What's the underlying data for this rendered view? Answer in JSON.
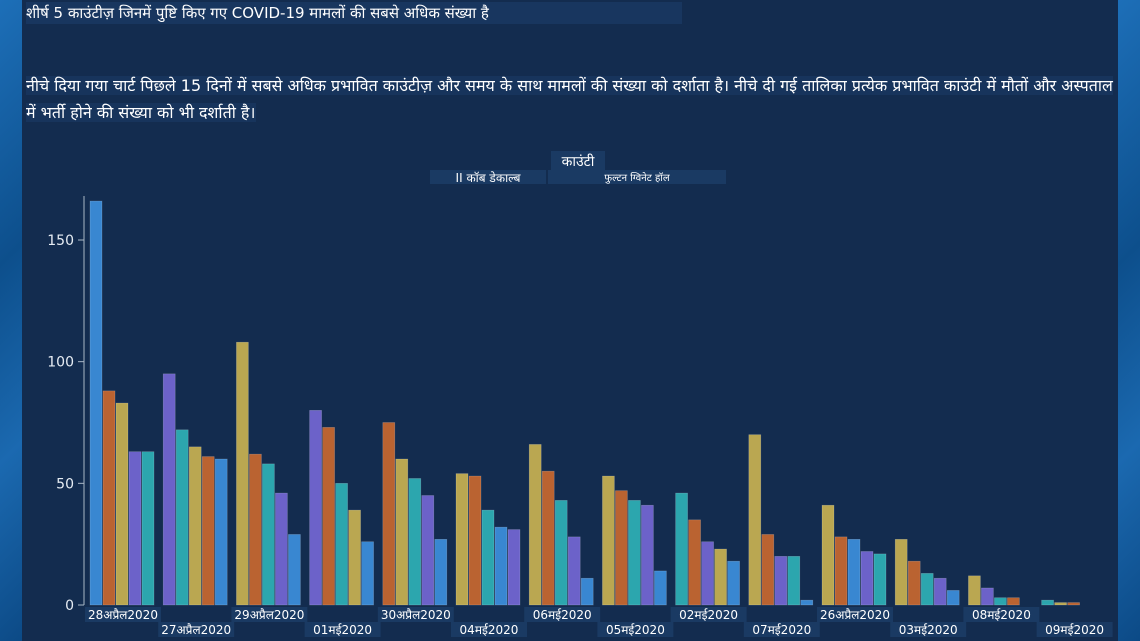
{
  "header": {
    "title": "शीर्ष 5 काउंटीज़ जिनमें पुष्टि किए गए COVID-19 मामलों की सबसे अधिक संख्या है",
    "description": "नीचे दिया गया चार्ट पिछले 15 दिनों में सबसे अधिक प्रभावित काउंटीज़ और समय के साथ मामलों की संख्या को दर्शाता है। नीचे दी गई तालिका प्रत्येक प्रभावित काउंटी में मौतों और अस्पताल में भर्ती होने की संख्या को भी दर्शाती है।"
  },
  "chart_data": {
    "type": "bar",
    "legend": {
      "title": "काउंटी",
      "label_left": "II कॉब डेकाल्ब",
      "label_right": "फुल्टन ग्विनेट हॉल",
      "position": "top-center"
    },
    "ylim": [
      0,
      170
    ],
    "yticks": [
      0,
      50,
      100,
      150
    ],
    "grid": false,
    "colors": [
      "#3d8fdc",
      "#c9682f",
      "#c9b251",
      "#7467d4",
      "#2fb1b6"
    ],
    "categories": [
      "28अप्रैल2020",
      "27अप्रैल2020",
      "29अप्रैल2020",
      "01मई2020",
      "30अप्रैल2020",
      "04मई2020",
      "06मई2020",
      "05मई2020",
      "02मई2020",
      "07मई2020",
      "26अप्रैल2020",
      "03मई2020",
      "08मई2020",
      "09मई2020"
    ],
    "groups": [
      {
        "values": [
          166,
          88,
          83,
          63,
          63
        ],
        "colors": [
          "#3d8fdc",
          "#c9682f",
          "#c9b251",
          "#7467d4",
          "#2fb1b6"
        ]
      },
      {
        "values": [
          95,
          72,
          65,
          61,
          60
        ],
        "colors": [
          "#7467d4",
          "#2fb1b6",
          "#c9b251",
          "#c9682f",
          "#3d8fdc"
        ]
      },
      {
        "values": [
          108,
          62,
          58,
          46,
          29
        ],
        "colors": [
          "#c9b251",
          "#c9682f",
          "#2fb1b6",
          "#7467d4",
          "#3d8fdc"
        ]
      },
      {
        "values": [
          80,
          73,
          50,
          39,
          26
        ],
        "colors": [
          "#7467d4",
          "#c9682f",
          "#2fb1b6",
          "#c9b251",
          "#3d8fdc"
        ]
      },
      {
        "values": [
          75,
          60,
          52,
          45,
          27
        ],
        "colors": [
          "#c9682f",
          "#c9b251",
          "#2fb1b6",
          "#7467d4",
          "#3d8fdc"
        ]
      },
      {
        "values": [
          54,
          53,
          39,
          32,
          31
        ],
        "colors": [
          "#c9b251",
          "#c9682f",
          "#2fb1b6",
          "#3d8fdc",
          "#7467d4"
        ]
      },
      {
        "values": [
          66,
          55,
          43,
          28,
          11
        ],
        "colors": [
          "#c9b251",
          "#c9682f",
          "#2fb1b6",
          "#7467d4",
          "#3d8fdc"
        ]
      },
      {
        "values": [
          53,
          47,
          43,
          41,
          14
        ],
        "colors": [
          "#c9b251",
          "#c9682f",
          "#2fb1b6",
          "#7467d4",
          "#3d8fdc"
        ]
      },
      {
        "values": [
          46,
          35,
          26,
          23,
          18
        ],
        "colors": [
          "#2fb1b6",
          "#c9682f",
          "#7467d4",
          "#c9b251",
          "#3d8fdc"
        ]
      },
      {
        "values": [
          70,
          29,
          20,
          20,
          2
        ],
        "colors": [
          "#c9b251",
          "#c9682f",
          "#7467d4",
          "#2fb1b6",
          "#3d8fdc"
        ]
      },
      {
        "values": [
          41,
          28,
          27,
          22,
          21
        ],
        "colors": [
          "#c9b251",
          "#c9682f",
          "#3d8fdc",
          "#7467d4",
          "#2fb1b6"
        ]
      },
      {
        "values": [
          27,
          18,
          13,
          11,
          6
        ],
        "colors": [
          "#c9b251",
          "#c9682f",
          "#2fb1b6",
          "#7467d4",
          "#3d8fdc"
        ]
      },
      {
        "values": [
          12,
          7,
          3,
          3
        ],
        "colors": [
          "#c9b251",
          "#7467d4",
          "#2fb1b6",
          "#c9682f"
        ]
      },
      {
        "values": [
          2,
          1,
          1
        ],
        "colors": [
          "#2fb1b6",
          "#c9b251",
          "#c9682f"
        ]
      }
    ]
  }
}
